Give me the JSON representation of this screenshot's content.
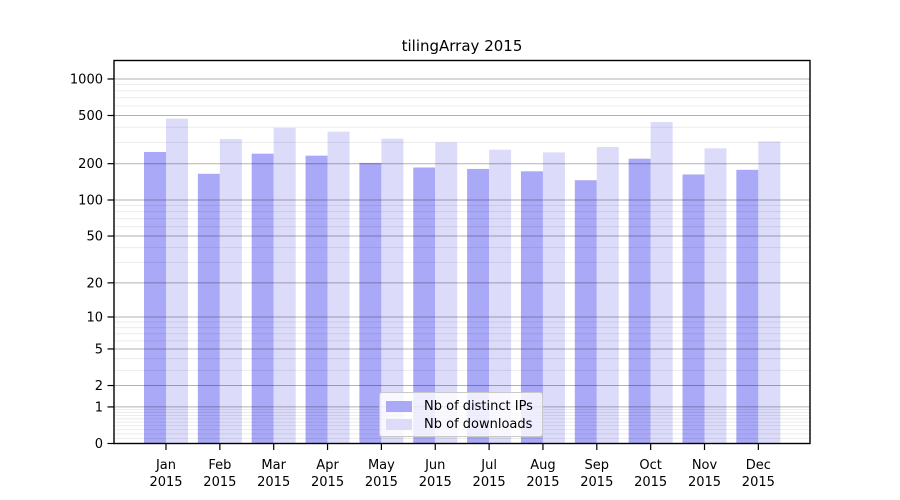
{
  "chart_data": {
    "type": "bar",
    "title": "tilingArray 2015",
    "categories": [
      "Jan",
      "Feb",
      "Mar",
      "Apr",
      "May",
      "Jun",
      "Jul",
      "Aug",
      "Sep",
      "Oct",
      "Nov",
      "Dec"
    ],
    "category_year": "2015",
    "series": [
      {
        "name": "Nb of distinct IPs",
        "color": "#a9a9f8",
        "values": [
          250,
          165,
          242,
          233,
          203,
          186,
          181,
          173,
          146,
          220,
          163,
          178
        ]
      },
      {
        "name": "Nb of downloads",
        "color": "#dcdcfa",
        "values": [
          471,
          320,
          395,
          368,
          322,
          300,
          261,
          248,
          275,
          442,
          268,
          305
        ]
      }
    ],
    "xlabel": "",
    "ylabel": "",
    "yscale": "log1p",
    "ytick_labels": [
      "0",
      "1",
      "2",
      "5",
      "10",
      "20",
      "50",
      "100",
      "200",
      "500",
      "1000"
    ],
    "ylim": [
      0,
      1420
    ],
    "grid": "horizontal log major+minor",
    "legend_position": "inside-bottom-center"
  }
}
